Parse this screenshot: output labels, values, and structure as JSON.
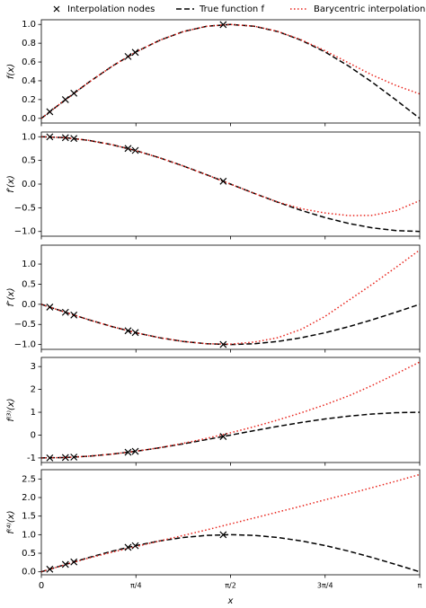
{
  "chart_data": [
    {
      "type": "line",
      "ylabel": "f(x)",
      "xlim": [
        0,
        3.1416
      ],
      "ylim": [
        -0.05,
        1.05
      ],
      "yticks": [
        {
          "value": 0,
          "label": "0.0"
        },
        {
          "value": 0.2,
          "label": "0.2"
        },
        {
          "value": 0.4,
          "label": "0.4"
        },
        {
          "value": 0.6,
          "label": "0.6"
        },
        {
          "value": 0.8,
          "label": "0.8"
        },
        {
          "value": 1,
          "label": "1.0"
        }
      ],
      "series": [
        {
          "name": "Interpolation nodes",
          "kind": "scatter",
          "marker": "x",
          "color": "#000000",
          "x": [
            0.07,
            0.2,
            0.27,
            0.72,
            0.78,
            1.51
          ],
          "values": [
            0.07,
            0.199,
            0.267,
            0.659,
            0.703,
            0.998
          ]
        },
        {
          "name": "True function f",
          "kind": "line",
          "dash": "dashed",
          "color": "#000000",
          "x": [
            0,
            0.1963,
            0.3927,
            0.589,
            0.7854,
            0.9817,
            1.1781,
            1.3744,
            1.5708,
            1.7671,
            1.9635,
            2.1598,
            2.3562,
            2.5525,
            2.7489,
            2.9452,
            3.1416
          ],
          "values": [
            0,
            0.195,
            0.383,
            0.556,
            0.707,
            0.831,
            0.924,
            0.981,
            1,
            0.981,
            0.924,
            0.831,
            0.707,
            0.556,
            0.383,
            0.195,
            0
          ]
        },
        {
          "name": "Barycentric interpolation",
          "kind": "line",
          "dash": "dotted",
          "color": "#e8231b",
          "x": [
            0,
            0.1963,
            0.3927,
            0.589,
            0.7854,
            0.9817,
            1.1781,
            1.3744,
            1.5708,
            1.7671,
            1.9635,
            2.1598,
            2.3562,
            2.5525,
            2.7489,
            2.9452,
            3.1416
          ],
          "values": [
            0,
            0.195,
            0.383,
            0.556,
            0.707,
            0.831,
            0.924,
            0.981,
            1,
            0.982,
            0.926,
            0.835,
            0.72,
            0.59,
            0.46,
            0.35,
            0.26
          ]
        }
      ]
    },
    {
      "type": "line",
      "ylabel": "f′(x)",
      "xlim": [
        0,
        3.1416
      ],
      "ylim": [
        -1.1,
        1.1
      ],
      "yticks": [
        {
          "value": -1,
          "label": "−1.0"
        },
        {
          "value": -0.5,
          "label": "−0.5"
        },
        {
          "value": 0,
          "label": "0.0"
        },
        {
          "value": 0.5,
          "label": "0.5"
        },
        {
          "value": 1,
          "label": "1.0"
        }
      ],
      "series": [
        {
          "kind": "scatter",
          "marker": "x",
          "color": "#000000",
          "x": [
            0.07,
            0.2,
            0.27,
            0.72,
            0.78,
            1.51
          ],
          "values": [
            0.998,
            0.98,
            0.964,
            0.752,
            0.711,
            0.061
          ]
        },
        {
          "kind": "line",
          "dash": "dashed",
          "color": "#000000",
          "x": [
            0,
            0.1963,
            0.3927,
            0.589,
            0.7854,
            0.9817,
            1.1781,
            1.3744,
            1.5708,
            1.7671,
            1.9635,
            2.1598,
            2.3562,
            2.5525,
            2.7489,
            2.9452,
            3.1416
          ],
          "values": [
            1,
            0.981,
            0.924,
            0.831,
            0.707,
            0.556,
            0.383,
            0.195,
            0,
            -0.195,
            -0.383,
            -0.556,
            -0.707,
            -0.831,
            -0.924,
            -0.981,
            -1
          ]
        },
        {
          "kind": "line",
          "dash": "dotted",
          "color": "#e8231b",
          "x": [
            0,
            0.1963,
            0.3927,
            0.589,
            0.7854,
            0.9817,
            1.1781,
            1.3744,
            1.5708,
            1.7671,
            1.9635,
            2.1598,
            2.3562,
            2.5525,
            2.7489,
            2.9452,
            3.1416
          ],
          "values": [
            1,
            0.981,
            0.924,
            0.831,
            0.707,
            0.556,
            0.383,
            0.195,
            0,
            -0.195,
            -0.38,
            -0.52,
            -0.61,
            -0.665,
            -0.66,
            -0.56,
            -0.35
          ]
        }
      ]
    },
    {
      "type": "line",
      "ylabel": "f″(x)",
      "xlim": [
        0,
        3.1416
      ],
      "ylim": [
        -1.12,
        1.47
      ],
      "yticks": [
        {
          "value": -1,
          "label": "−1.0"
        },
        {
          "value": -0.5,
          "label": "−0.5"
        },
        {
          "value": 0,
          "label": "0.0"
        },
        {
          "value": 0.5,
          "label": "0.5"
        },
        {
          "value": 1,
          "label": "1.0"
        }
      ],
      "series": [
        {
          "kind": "scatter",
          "marker": "x",
          "color": "#000000",
          "x": [
            0.07,
            0.2,
            0.27,
            0.72,
            0.78,
            1.51
          ],
          "values": [
            -0.07,
            -0.199,
            -0.267,
            -0.659,
            -0.703,
            -0.998
          ]
        },
        {
          "kind": "line",
          "dash": "dashed",
          "color": "#000000",
          "x": [
            0,
            0.1963,
            0.3927,
            0.589,
            0.7854,
            0.9817,
            1.1781,
            1.3744,
            1.5708,
            1.7671,
            1.9635,
            2.1598,
            2.3562,
            2.5525,
            2.7489,
            2.9452,
            3.1416
          ],
          "values": [
            0,
            -0.195,
            -0.383,
            -0.556,
            -0.707,
            -0.831,
            -0.924,
            -0.981,
            -1,
            -0.981,
            -0.924,
            -0.831,
            -0.707,
            -0.556,
            -0.383,
            -0.195,
            0
          ]
        },
        {
          "kind": "line",
          "dash": "dotted",
          "color": "#e8231b",
          "x": [
            0,
            0.1963,
            0.3927,
            0.589,
            0.7854,
            0.9817,
            1.1781,
            1.3744,
            1.5708,
            1.7671,
            1.9635,
            2.1598,
            2.3562,
            2.5525,
            2.7489,
            2.9452,
            3.1416
          ],
          "values": [
            0,
            -0.195,
            -0.383,
            -0.556,
            -0.707,
            -0.831,
            -0.924,
            -0.981,
            -0.99,
            -0.94,
            -0.83,
            -0.62,
            -0.3,
            0.1,
            0.5,
            0.92,
            1.35
          ]
        }
      ]
    },
    {
      "type": "line",
      "ylabel": "f⁽³⁾(x)",
      "xlim": [
        0,
        3.1416
      ],
      "ylim": [
        -1.2,
        3.4
      ],
      "yticks": [
        -1,
        0,
        1,
        2,
        3
      ],
      "series": [
        {
          "kind": "scatter",
          "marker": "x",
          "color": "#000000",
          "x": [
            0.07,
            0.2,
            0.27,
            0.72,
            0.78,
            1.51
          ],
          "values": [
            -0.998,
            -0.98,
            -0.964,
            -0.752,
            -0.711,
            -0.061
          ]
        },
        {
          "kind": "line",
          "dash": "dashed",
          "color": "#000000",
          "x": [
            0,
            0.1963,
            0.3927,
            0.589,
            0.7854,
            0.9817,
            1.1781,
            1.3744,
            1.5708,
            1.7671,
            1.9635,
            2.1598,
            2.3562,
            2.5525,
            2.7489,
            2.9452,
            3.1416
          ],
          "values": [
            -1,
            -0.981,
            -0.924,
            -0.831,
            -0.707,
            -0.556,
            -0.383,
            -0.195,
            0,
            0.195,
            0.383,
            0.556,
            0.707,
            0.831,
            0.924,
            0.981,
            1
          ]
        },
        {
          "kind": "line",
          "dash": "dotted",
          "color": "#e8231b",
          "x": [
            0,
            0.1963,
            0.3927,
            0.589,
            0.7854,
            0.9817,
            1.1781,
            1.3744,
            1.5708,
            1.7671,
            1.9635,
            2.1598,
            2.3562,
            2.5525,
            2.7489,
            2.9452,
            3.1416
          ],
          "values": [
            -1,
            -0.981,
            -0.924,
            -0.831,
            -0.707,
            -0.55,
            -0.36,
            -0.14,
            0.1,
            0.37,
            0.66,
            0.98,
            1.33,
            1.72,
            2.18,
            2.68,
            3.2
          ]
        }
      ]
    },
    {
      "type": "line",
      "ylabel": "f⁽⁴⁾(x)",
      "xlabel": "x",
      "xlim": [
        0,
        3.1416
      ],
      "ylim": [
        -0.08,
        2.75
      ],
      "xticks": [
        0,
        {
          "value": 0.7854,
          "label": "π/4"
        },
        {
          "value": 1.5708,
          "label": "π/2"
        },
        {
          "value": 2.3562,
          "label": "3π/4"
        },
        {
          "value": 3.1416,
          "label": "π"
        }
      ],
      "yticks": [
        {
          "value": 0,
          "label": "0.0"
        },
        {
          "value": 0.5,
          "label": "0.5"
        },
        {
          "value": 1,
          "label": "1.0"
        },
        {
          "value": 1.5,
          "label": "1.5"
        },
        {
          "value": 2,
          "label": "2.0"
        },
        {
          "value": 2.5,
          "label": "2.5"
        }
      ],
      "series": [
        {
          "kind": "scatter",
          "marker": "x",
          "color": "#000000",
          "x": [
            0.07,
            0.2,
            0.27,
            0.72,
            0.78,
            1.51
          ],
          "values": [
            0.07,
            0.199,
            0.267,
            0.659,
            0.703,
            0.998
          ]
        },
        {
          "kind": "line",
          "dash": "dashed",
          "color": "#000000",
          "x": [
            0,
            0.1963,
            0.3927,
            0.589,
            0.7854,
            0.9817,
            1.1781,
            1.3744,
            1.5708,
            1.7671,
            1.9635,
            2.1598,
            2.3562,
            2.5525,
            2.7489,
            2.9452,
            3.1416
          ],
          "values": [
            0,
            0.195,
            0.383,
            0.556,
            0.707,
            0.831,
            0.924,
            0.981,
            1,
            0.981,
            0.924,
            0.831,
            0.707,
            0.556,
            0.383,
            0.195,
            0
          ]
        },
        {
          "kind": "line",
          "dash": "dotted",
          "color": "#e8231b",
          "x": [
            0,
            0.1963,
            0.3927,
            0.589,
            0.7854,
            0.9817,
            1.1781,
            1.3744,
            1.5708,
            1.7671,
            1.9635,
            2.1598,
            2.3562,
            2.5525,
            2.7489,
            2.9452,
            3.1416
          ],
          "values": [
            0,
            0.19,
            0.37,
            0.53,
            0.68,
            0.83,
            0.98,
            1.13,
            1.29,
            1.45,
            1.61,
            1.77,
            1.94,
            2.1,
            2.27,
            2.44,
            2.62
          ]
        }
      ]
    }
  ]
}
